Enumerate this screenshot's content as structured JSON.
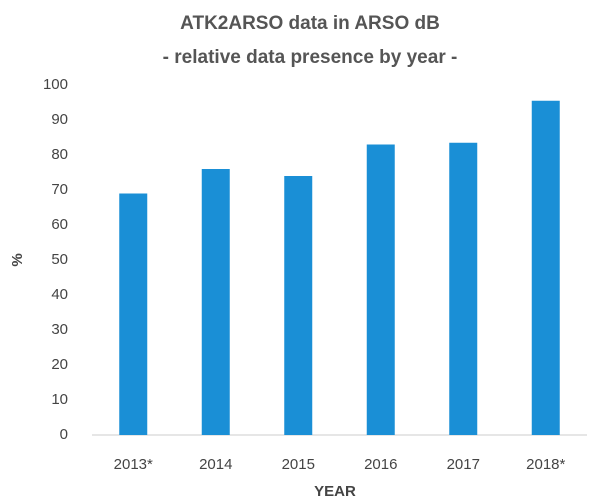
{
  "chart_data": {
    "type": "bar",
    "title": "ATK2ARSO data in ARSO dB",
    "subtitle": "- relative data presence by year -",
    "x_label": "YEAR",
    "y_label": "%",
    "categories": [
      "2013*",
      "2014",
      "2015",
      "2016",
      "2017",
      "2018*"
    ],
    "values": [
      69,
      76,
      74,
      83,
      83.5,
      95.5
    ],
    "color": "#1a8fd6",
    "ylim": [
      0,
      100
    ],
    "yticks": [
      0,
      10,
      20,
      30,
      40,
      50,
      60,
      70,
      80,
      90,
      100
    ],
    "grid": false
  }
}
